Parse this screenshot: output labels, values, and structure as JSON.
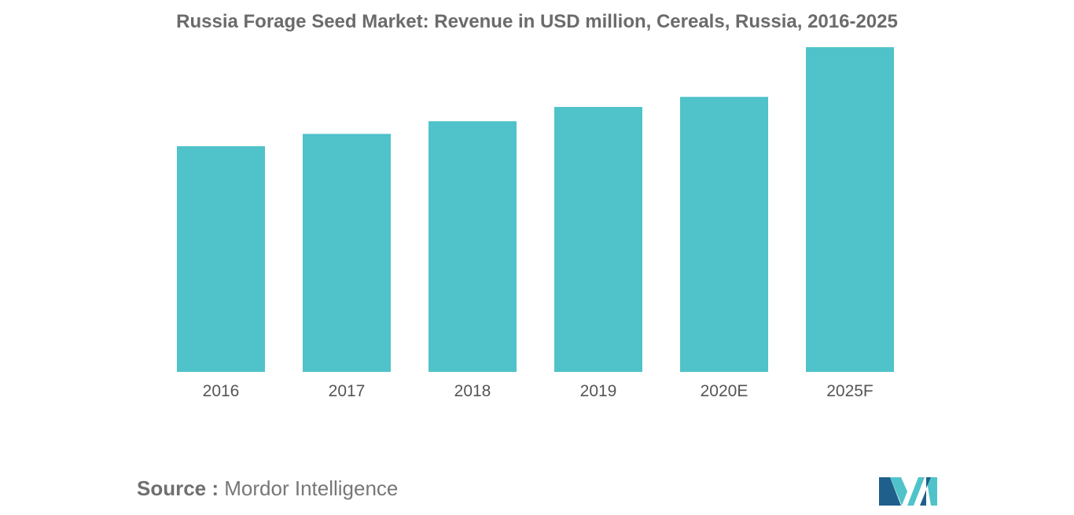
{
  "chart_data": {
    "type": "bar",
    "title": "Russia Forage Seed Market: Revenue in USD million, Cereals, Russia, 2016-2025",
    "categories": [
      "2016",
      "2017",
      "2018",
      "2019",
      "2020E",
      "2025F"
    ],
    "values": [
      69.5,
      73.3,
      77.2,
      81.6,
      84.7,
      100
    ],
    "xlabel": "",
    "ylabel": "",
    "ylim": [
      0,
      100
    ],
    "grid": false,
    "legend": "none",
    "bar_color": "#4fc3c9"
  },
  "source": {
    "label": "Source :",
    "text": "Mordor Intelligence"
  },
  "logo": {
    "icon": "mordor-intelligence-logo",
    "colors": [
      "#1f5f8b",
      "#4fc3c9"
    ]
  }
}
